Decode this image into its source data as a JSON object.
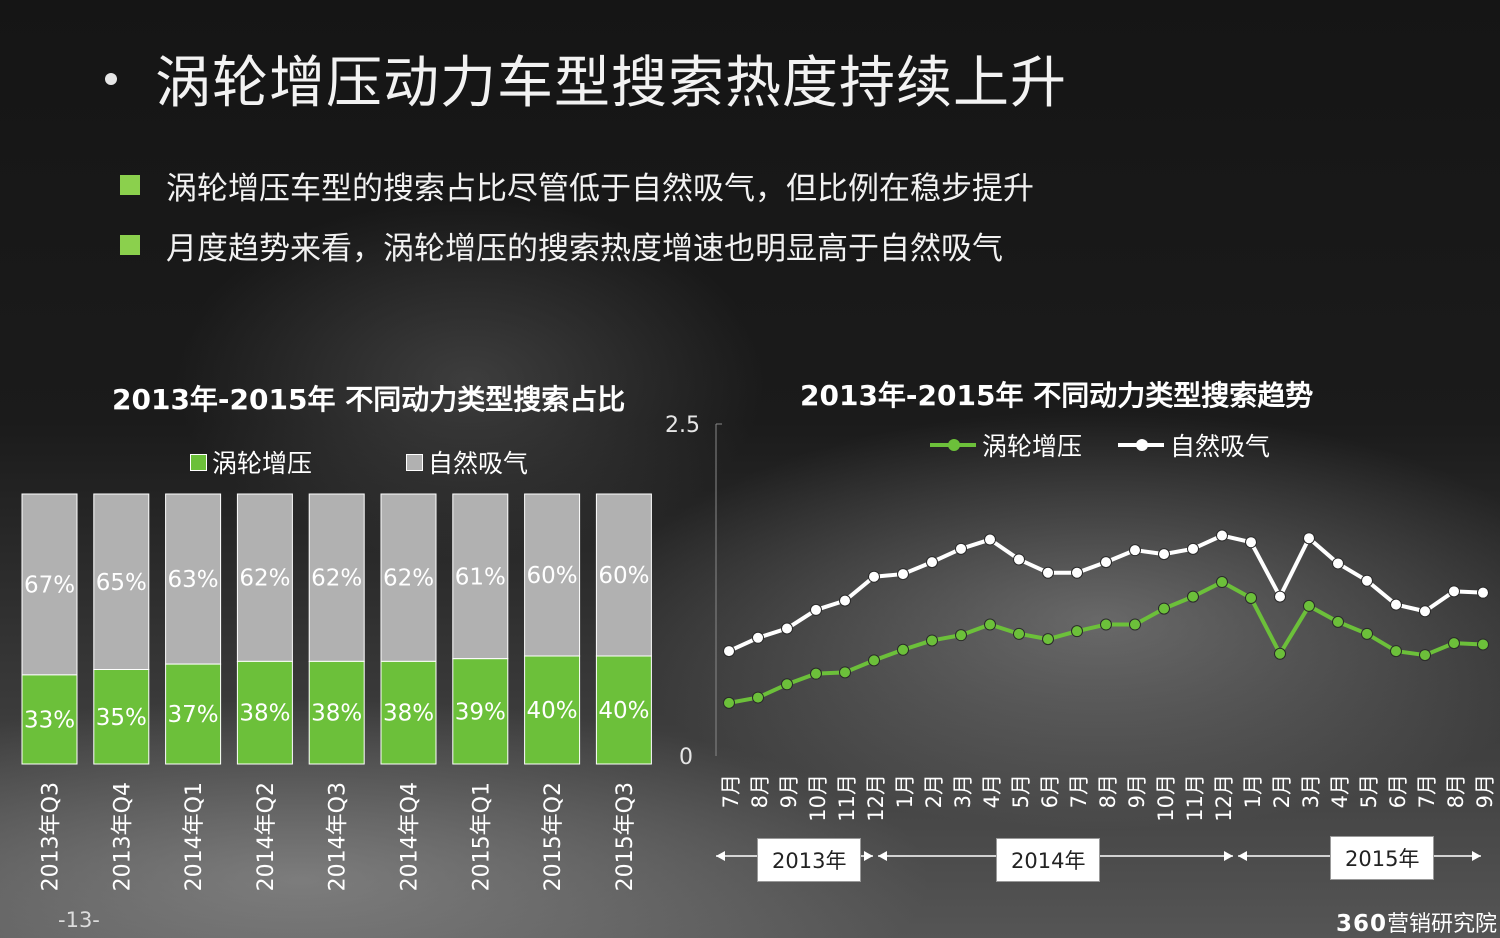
{
  "slide": {
    "title": "涡轮增压动力车型搜索热度持续上升",
    "bullets": [
      "涡轮增压车型的搜索占比尽管低于自然吸气，但比例在稳步提升",
      "月度趋势来看，涡轮增压的搜索热度增速也明显高于自然吸气"
    ],
    "page_number": "-13-",
    "brand_prefix": "360",
    "brand_suffix": "营销研究院"
  },
  "colors": {
    "turbo": "#6cc03a",
    "natural": "#b1b1b1",
    "natural_line": "#ffffff",
    "bullet": "#8bd04d"
  },
  "chart_data": [
    {
      "type": "bar",
      "stacked": true,
      "title": "2013年-2015年 不同动力类型搜索占比",
      "categories": [
        "2013年Q3",
        "2013年Q4",
        "2014年Q1",
        "2014年Q2",
        "2014年Q3",
        "2014年Q4",
        "2015年Q1",
        "2015年Q2",
        "2015年Q3"
      ],
      "series": [
        {
          "name": "涡轮增压",
          "values": [
            33,
            35,
            37,
            38,
            38,
            38,
            39,
            40,
            40
          ],
          "labels": [
            "33%",
            "35%",
            "37%",
            "38%",
            "38%",
            "38%",
            "39%",
            "40%",
            "40%"
          ]
        },
        {
          "name": "自然吸气",
          "values": [
            67,
            65,
            63,
            62,
            62,
            62,
            61,
            60,
            60
          ],
          "labels": [
            "67%",
            "65%",
            "63%",
            "62%",
            "62%",
            "62%",
            "61%",
            "60%",
            "60%"
          ]
        }
      ],
      "ylim": [
        0,
        100
      ],
      "legend_position": "top"
    },
    {
      "type": "line",
      "title": "2013年-2015年 不同动力类型搜索趋势",
      "x": [
        "7月",
        "8月",
        "9月",
        "10月",
        "11月",
        "12月",
        "1月",
        "2月",
        "3月",
        "4月",
        "5月",
        "6月",
        "7月",
        "8月",
        "9月",
        "10月",
        "11月",
        "12月",
        "1月",
        "2月",
        "3月",
        "4月",
        "5月",
        "6月",
        "7月",
        "8月",
        "9月"
      ],
      "year_groups": [
        {
          "label": "2013年",
          "span": 6
        },
        {
          "label": "2014年",
          "span": 12
        },
        {
          "label": "2015年",
          "span": 9
        }
      ],
      "series": [
        {
          "name": "涡轮增压",
          "values": [
            0.4,
            0.44,
            0.54,
            0.62,
            0.63,
            0.72,
            0.8,
            0.87,
            0.91,
            0.99,
            0.92,
            0.88,
            0.94,
            0.99,
            0.99,
            1.11,
            1.2,
            1.31,
            1.19,
            0.77,
            1.13,
            1.01,
            0.92,
            0.79,
            0.76,
            0.85,
            0.84
          ]
        },
        {
          "name": "自然吸气",
          "values": [
            0.79,
            0.89,
            0.96,
            1.1,
            1.17,
            1.35,
            1.37,
            1.46,
            1.56,
            1.63,
            1.48,
            1.38,
            1.38,
            1.46,
            1.55,
            1.52,
            1.56,
            1.66,
            1.61,
            1.2,
            1.64,
            1.45,
            1.32,
            1.14,
            1.09,
            1.24,
            1.23
          ]
        }
      ],
      "yticks": [
        "2.5",
        "0"
      ],
      "ylim": [
        0,
        2.5
      ],
      "legend_position": "top"
    }
  ]
}
